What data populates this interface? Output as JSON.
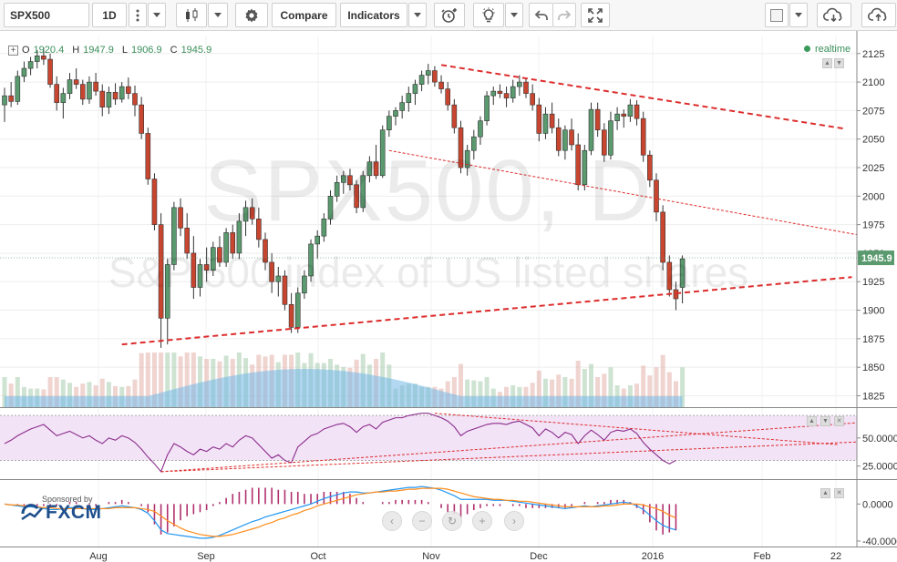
{
  "toolbar": {
    "symbol": "SPX500",
    "interval": "1D",
    "compare_label": "Compare",
    "indicators_label": "Indicators"
  },
  "legend": {
    "open_label": "O",
    "open": "1920.4",
    "high_label": "H",
    "high": "1947.9",
    "low_label": "L",
    "low": "1906.9",
    "close_label": "C",
    "close": "1945.9",
    "realtime": "realtime"
  },
  "watermark": {
    "symbol": "SPX500, D",
    "description": "S&P 500 index of US listed shares"
  },
  "sponsor": {
    "label": "Sponsored by",
    "name": "FXCM"
  },
  "colors": {
    "up": "#5a9a6e",
    "down": "#c8452f",
    "trend": "#dd2b2b",
    "rsi": "#8a2c8a",
    "macd": "#2196f3",
    "signal": "#ff8c1a",
    "volume": "#74b8e8"
  },
  "chart_data": {
    "type": "candlestick",
    "price_axis": {
      "ticks": [
        2125,
        2100,
        2075,
        2050,
        2025,
        2000,
        1975,
        1950,
        1925,
        1900,
        1875,
        1850,
        1825
      ],
      "ylim": [
        1815,
        2140
      ],
      "last_price": "1945.9"
    },
    "x_axis": {
      "ticks": [
        "Aug",
        "Sep",
        "Oct",
        "Nov",
        "Dec",
        "2016",
        "Feb",
        "22"
      ]
    },
    "candles": [
      [
        2080,
        2095,
        2065,
        2088
      ],
      [
        2088,
        2100,
        2078,
        2083
      ],
      [
        2083,
        2110,
        2080,
        2105
      ],
      [
        2105,
        2118,
        2100,
        2112
      ],
      [
        2112,
        2122,
        2106,
        2118
      ],
      [
        2118,
        2128,
        2112,
        2123
      ],
      [
        2123,
        2130,
        2115,
        2120
      ],
      [
        2120,
        2125,
        2095,
        2098
      ],
      [
        2098,
        2105,
        2075,
        2082
      ],
      [
        2082,
        2095,
        2068,
        2090
      ],
      [
        2090,
        2108,
        2085,
        2102
      ],
      [
        2102,
        2112,
        2094,
        2098
      ],
      [
        2098,
        2102,
        2080,
        2085
      ],
      [
        2085,
        2105,
        2081,
        2100
      ],
      [
        2100,
        2108,
        2088,
        2092
      ],
      [
        2092,
        2098,
        2070,
        2078
      ],
      [
        2078,
        2096,
        2072,
        2091
      ],
      [
        2091,
        2099,
        2080,
        2085
      ],
      [
        2085,
        2100,
        2082,
        2096
      ],
      [
        2096,
        2104,
        2085,
        2090
      ],
      [
        2090,
        2097,
        2070,
        2080
      ],
      [
        2080,
        2087,
        2050,
        2055
      ],
      [
        2055,
        2060,
        2010,
        2015
      ],
      [
        2015,
        2020,
        1970,
        1975
      ],
      [
        1975,
        1985,
        1867,
        1893
      ],
      [
        1893,
        1945,
        1870,
        1940
      ],
      [
        1940,
        1995,
        1935,
        1990
      ],
      [
        1990,
        1998,
        1965,
        1972
      ],
      [
        1972,
        1985,
        1945,
        1950
      ],
      [
        1950,
        1965,
        1910,
        1920
      ],
      [
        1920,
        1945,
        1912,
        1940
      ],
      [
        1940,
        1955,
        1925,
        1935
      ],
      [
        1935,
        1960,
        1930,
        1955
      ],
      [
        1955,
        1965,
        1938,
        1942
      ],
      [
        1942,
        1972,
        1938,
        1968
      ],
      [
        1968,
        1975,
        1945,
        1950
      ],
      [
        1950,
        1985,
        1945,
        1978
      ],
      [
        1978,
        1996,
        1965,
        1990
      ],
      [
        1990,
        1998,
        1975,
        1980
      ],
      [
        1980,
        1990,
        1955,
        1962
      ],
      [
        1962,
        1968,
        1935,
        1942
      ],
      [
        1942,
        1950,
        1915,
        1925
      ],
      [
        1925,
        1938,
        1912,
        1930
      ],
      [
        1930,
        1935,
        1900,
        1905
      ],
      [
        1905,
        1915,
        1880,
        1885
      ],
      [
        1885,
        1920,
        1880,
        1915
      ],
      [
        1915,
        1935,
        1910,
        1930
      ],
      [
        1930,
        1962,
        1925,
        1958
      ],
      [
        1958,
        1970,
        1945,
        1965
      ],
      [
        1965,
        1985,
        1960,
        1980
      ],
      [
        1980,
        2005,
        1975,
        2000
      ],
      [
        2000,
        2018,
        1995,
        2012
      ],
      [
        2012,
        2022,
        2002,
        2018
      ],
      [
        2018,
        2024,
        2005,
        2010
      ],
      [
        2010,
        2014,
        1985,
        1990
      ],
      [
        1990,
        2022,
        1986,
        2018
      ],
      [
        2018,
        2035,
        2012,
        2030
      ],
      [
        2030,
        2045,
        2015,
        2018
      ],
      [
        2018,
        2062,
        2016,
        2058
      ],
      [
        2058,
        2075,
        2052,
        2070
      ],
      [
        2070,
        2078,
        2062,
        2075
      ],
      [
        2075,
        2088,
        2068,
        2082
      ],
      [
        2082,
        2096,
        2074,
        2090
      ],
      [
        2090,
        2102,
        2080,
        2098
      ],
      [
        2098,
        2110,
        2092,
        2106
      ],
      [
        2106,
        2116,
        2098,
        2110
      ],
      [
        2110,
        2114,
        2096,
        2100
      ],
      [
        2100,
        2106,
        2090,
        2094
      ],
      [
        2094,
        2100,
        2075,
        2080
      ],
      [
        2080,
        2085,
        2055,
        2060
      ],
      [
        2060,
        2066,
        2020,
        2025
      ],
      [
        2025,
        2045,
        2018,
        2040
      ],
      [
        2040,
        2058,
        2032,
        2052
      ],
      [
        2052,
        2070,
        2045,
        2066
      ],
      [
        2066,
        2092,
        2062,
        2088
      ],
      [
        2088,
        2096,
        2080,
        2092
      ],
      [
        2092,
        2098,
        2086,
        2090
      ],
      [
        2090,
        2096,
        2078,
        2086
      ],
      [
        2086,
        2102,
        2082,
        2096
      ],
      [
        2096,
        2106,
        2088,
        2100
      ],
      [
        2100,
        2104,
        2086,
        2090
      ],
      [
        2090,
        2098,
        2075,
        2080
      ],
      [
        2080,
        2086,
        2048,
        2055
      ],
      [
        2055,
        2078,
        2050,
        2072
      ],
      [
        2072,
        2082,
        2055,
        2060
      ],
      [
        2060,
        2068,
        2035,
        2040
      ],
      [
        2040,
        2062,
        2032,
        2058
      ],
      [
        2058,
        2068,
        2040,
        2045
      ],
      [
        2045,
        2055,
        2005,
        2010
      ],
      [
        2010,
        2045,
        2005,
        2040
      ],
      [
        2040,
        2082,
        2036,
        2076
      ],
      [
        2076,
        2082,
        2052,
        2058
      ],
      [
        2058,
        2064,
        2030,
        2036
      ],
      [
        2036,
        2074,
        2032,
        2066
      ],
      [
        2066,
        2078,
        2058,
        2072
      ],
      [
        2072,
        2076,
        2060,
        2070
      ],
      [
        2070,
        2085,
        2065,
        2080
      ],
      [
        2080,
        2084,
        2062,
        2068
      ],
      [
        2068,
        2074,
        2030,
        2036
      ],
      [
        2036,
        2040,
        2008,
        2014
      ],
      [
        2014,
        2020,
        1978,
        1986
      ],
      [
        1986,
        1992,
        1935,
        1942
      ],
      [
        1942,
        1948,
        1912,
        1918
      ],
      [
        1918,
        1925,
        1900,
        1910
      ],
      [
        1920,
        1948,
        1906,
        1945
      ]
    ],
    "trendlines": [
      {
        "from": [
          18,
          1870
        ],
        "to": [
          130,
          1929
        ],
        "style": "dashed-thick"
      },
      {
        "from": [
          67,
          2115
        ],
        "to": [
          129,
          2059
        ],
        "style": "dashed-thick"
      },
      {
        "from": [
          59,
          2040
        ],
        "to": [
          131,
          1966
        ],
        "style": "dashed-thin"
      }
    ],
    "rsi": {
      "ticks": [
        "50.0000",
        "25.0000"
      ],
      "ylim": [
        15,
        75
      ],
      "band": [
        30,
        70
      ],
      "values": [
        45,
        48,
        52,
        55,
        58,
        60,
        62,
        57,
        52,
        54,
        56,
        53,
        50,
        52,
        48,
        45,
        50,
        48,
        52,
        50,
        46,
        40,
        33,
        27,
        20,
        35,
        45,
        42,
        38,
        35,
        40,
        38,
        42,
        40,
        45,
        42,
        48,
        52,
        50,
        44,
        38,
        32,
        35,
        30,
        28,
        42,
        47,
        52,
        54,
        58,
        60,
        62,
        63,
        60,
        55,
        60,
        62,
        58,
        64,
        66,
        68,
        68,
        70,
        71,
        72,
        72,
        70,
        68,
        65,
        60,
        52,
        56,
        58,
        60,
        62,
        63,
        63,
        62,
        64,
        65,
        62,
        59,
        52,
        58,
        55,
        50,
        55,
        53,
        45,
        52,
        57,
        53,
        48,
        55,
        57,
        56,
        58,
        54,
        46,
        40,
        35,
        30,
        27,
        30
      ],
      "trendlines": [
        {
          "from": [
            24,
            20
          ],
          "to": [
            132,
            64
          ],
          "style": "dashed-thin"
        },
        {
          "from": [
            24,
            20
          ],
          "to": [
            133,
            47
          ],
          "style": "dashed-thin"
        },
        {
          "from": [
            66,
            72
          ],
          "to": [
            128,
            44
          ],
          "style": "dashed-thin"
        }
      ]
    },
    "macd": {
      "ticks": [
        "0.0000",
        "-40.0000"
      ],
      "ylim": [
        -44,
        24
      ],
      "macd_line": [
        0,
        -1,
        -2,
        -3,
        -3,
        -4,
        -5,
        -6,
        -6,
        -5,
        -4,
        -4,
        -5,
        -6,
        -6,
        -5,
        -4,
        -3,
        -2,
        -3,
        -4,
        -6,
        -10,
        -18,
        -28,
        -32,
        -33,
        -34,
        -35,
        -36,
        -37,
        -37,
        -36,
        -34,
        -31,
        -28,
        -25,
        -22,
        -19,
        -17,
        -14,
        -12,
        -10,
        -8,
        -6,
        -4,
        -2,
        0,
        3,
        6,
        8,
        10,
        12,
        13,
        13,
        12,
        12,
        13,
        14,
        15,
        16,
        17,
        18,
        18,
        19,
        18,
        17,
        15,
        12,
        9,
        5,
        5,
        5,
        5,
        5,
        4,
        4,
        4,
        3,
        2,
        1,
        0,
        -1,
        -2,
        -3,
        -4,
        -5,
        -4,
        -3,
        -2,
        -3,
        -2,
        -1,
        0,
        1,
        2,
        1,
        -2,
        -6,
        -12,
        -18,
        -23,
        -26,
        -28
      ],
      "signal_line": [
        0,
        -1,
        -1,
        -2,
        -2,
        -3,
        -4,
        -4,
        -5,
        -5,
        -5,
        -5,
        -5,
        -5,
        -5,
        -5,
        -5,
        -4,
        -4,
        -4,
        -4,
        -5,
        -6,
        -8,
        -13,
        -18,
        -22,
        -26,
        -29,
        -31,
        -33,
        -34,
        -35,
        -35,
        -34,
        -33,
        -31,
        -29,
        -27,
        -25,
        -22,
        -20,
        -17,
        -15,
        -12,
        -10,
        -7,
        -5,
        -2,
        0,
        2,
        4,
        6,
        8,
        10,
        11,
        12,
        13,
        13,
        14,
        14,
        15,
        16,
        16,
        17,
        17,
        17,
        17,
        16,
        14,
        12,
        10,
        8,
        7,
        6,
        5,
        5,
        4,
        4,
        3,
        3,
        2,
        1,
        0,
        -1,
        -2,
        -3,
        -3,
        -3,
        -3,
        -3,
        -3,
        -2,
        -2,
        -1,
        0,
        0,
        0,
        -1,
        -3,
        -5,
        -8,
        -12,
        -15
      ]
    }
  }
}
